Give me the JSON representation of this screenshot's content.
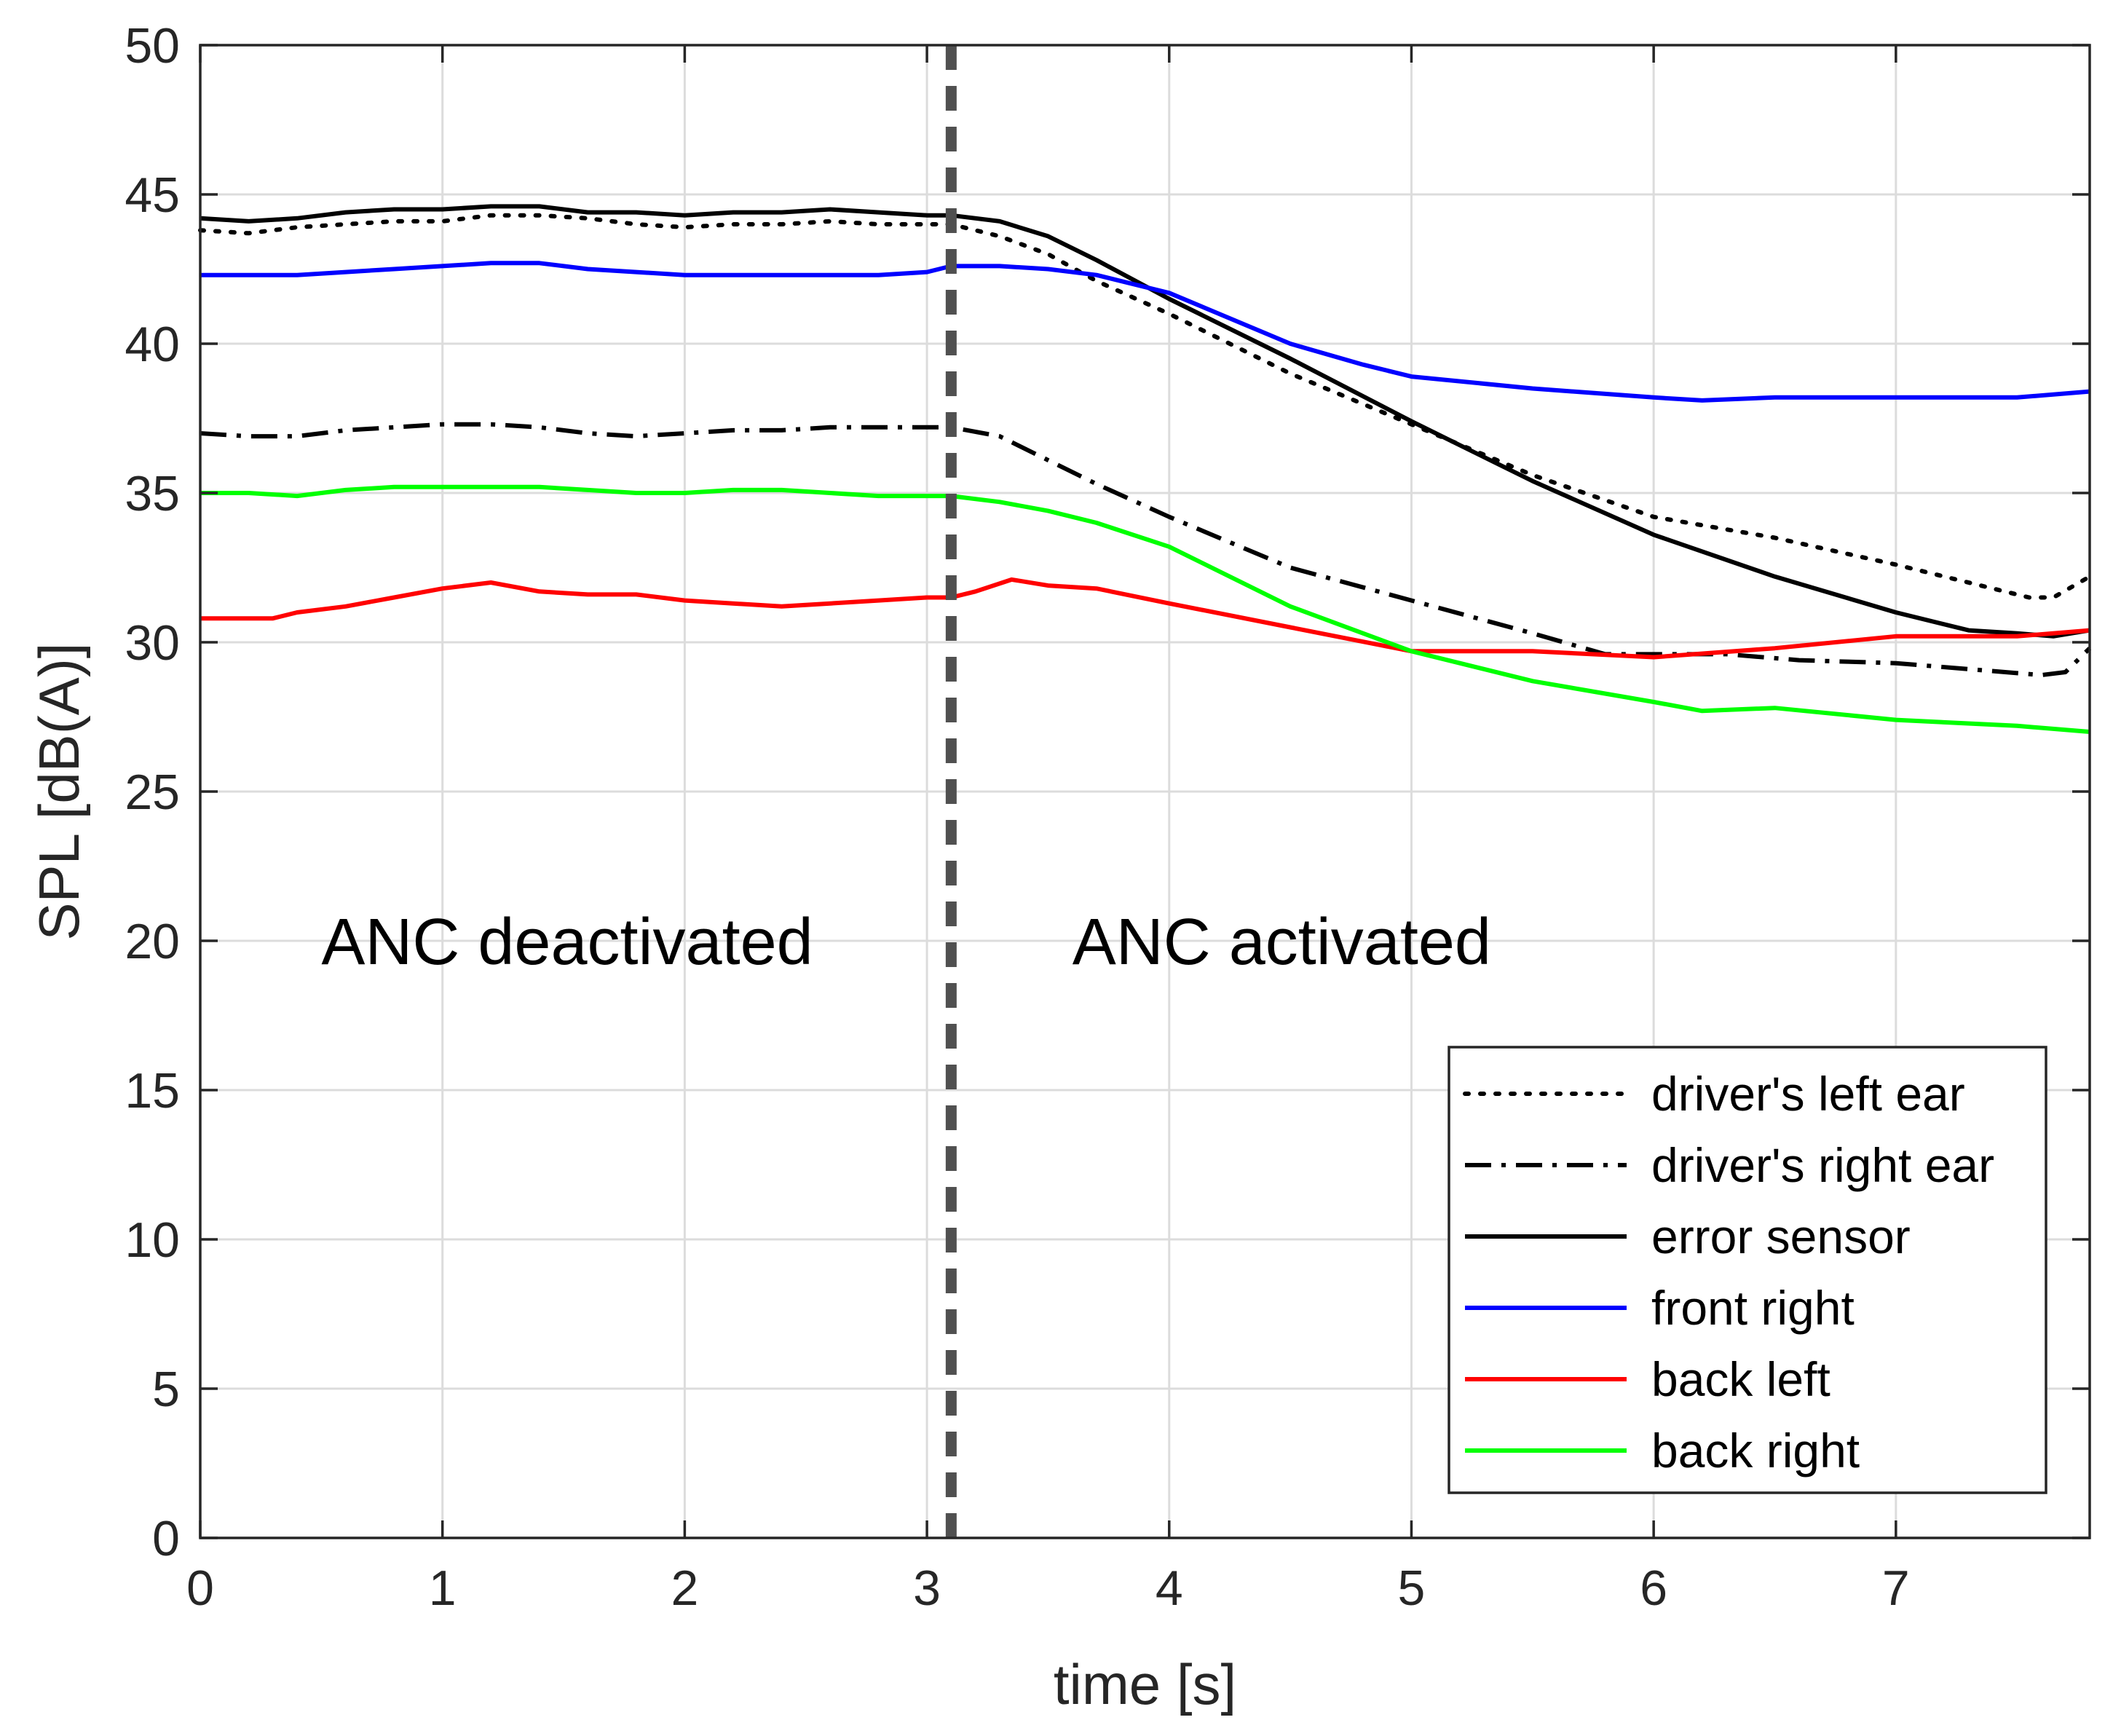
{
  "chart_data": {
    "type": "line",
    "title": "",
    "xlabel": "time [s]",
    "ylabel": "SPL [dB(A)]",
    "xlim": [
      0,
      7.8
    ],
    "ylim": [
      0,
      50
    ],
    "x_ticks": [
      0,
      1,
      2,
      3,
      4,
      5,
      6,
      7
    ],
    "y_ticks": [
      0,
      5,
      10,
      15,
      20,
      25,
      30,
      35,
      40,
      45,
      50
    ],
    "grid": true,
    "legend_position": "bottom-right",
    "vline": {
      "x": 3.1,
      "style": "dashed",
      "color": "#505050"
    },
    "annotations": [
      {
        "text": "ANC deactivated",
        "x": 0.5,
        "y": 20
      },
      {
        "text": "ANC activated",
        "x": 3.6,
        "y": 20
      }
    ],
    "series": [
      {
        "name": "driver's left ear",
        "color": "#000000",
        "style": "dotted",
        "x": [
          0,
          0.2,
          0.4,
          0.6,
          0.8,
          1.0,
          1.2,
          1.4,
          1.6,
          1.8,
          2.0,
          2.2,
          2.4,
          2.6,
          2.8,
          3.0,
          3.1,
          3.3,
          3.5,
          3.7,
          4.0,
          4.5,
          5.0,
          5.5,
          6.0,
          6.5,
          7.0,
          7.3,
          7.55,
          7.65,
          7.8
        ],
        "values": [
          43.8,
          43.7,
          43.9,
          44.0,
          44.1,
          44.1,
          44.3,
          44.3,
          44.2,
          44.0,
          43.9,
          44.0,
          44.0,
          44.1,
          44.0,
          44.0,
          44.0,
          43.6,
          43.0,
          42.1,
          41.0,
          39.0,
          37.3,
          35.6,
          34.2,
          33.5,
          32.6,
          32.0,
          31.5,
          31.5,
          32.2
        ]
      },
      {
        "name": "driver's right ear",
        "color": "#000000",
        "style": "dashdot",
        "x": [
          0,
          0.2,
          0.4,
          0.6,
          0.8,
          1.0,
          1.2,
          1.4,
          1.6,
          1.8,
          2.0,
          2.2,
          2.4,
          2.6,
          2.8,
          3.0,
          3.1,
          3.3,
          3.5,
          3.7,
          4.0,
          4.5,
          5.0,
          5.5,
          5.8,
          6.0,
          6.3,
          6.6,
          7.0,
          7.3,
          7.6,
          7.7,
          7.8
        ],
        "values": [
          37.0,
          36.9,
          36.9,
          37.1,
          37.2,
          37.3,
          37.3,
          37.2,
          37.0,
          36.9,
          37.0,
          37.1,
          37.1,
          37.2,
          37.2,
          37.2,
          37.2,
          36.9,
          36.1,
          35.3,
          34.2,
          32.5,
          31.4,
          30.3,
          29.6,
          29.6,
          29.6,
          29.4,
          29.3,
          29.1,
          28.9,
          29.0,
          29.8
        ]
      },
      {
        "name": "error sensor",
        "color": "#000000",
        "style": "solid",
        "x": [
          0,
          0.2,
          0.4,
          0.6,
          0.8,
          1.0,
          1.2,
          1.4,
          1.6,
          1.8,
          2.0,
          2.2,
          2.4,
          2.6,
          2.8,
          3.0,
          3.1,
          3.3,
          3.5,
          3.7,
          4.0,
          4.5,
          5.0,
          5.5,
          6.0,
          6.5,
          7.0,
          7.3,
          7.5,
          7.65,
          7.8
        ],
        "values": [
          44.2,
          44.1,
          44.2,
          44.4,
          44.5,
          44.5,
          44.6,
          44.6,
          44.4,
          44.4,
          44.3,
          44.4,
          44.4,
          44.5,
          44.4,
          44.3,
          44.3,
          44.1,
          43.6,
          42.8,
          41.5,
          39.5,
          37.4,
          35.4,
          33.6,
          32.2,
          31.0,
          30.4,
          30.3,
          30.2,
          30.4
        ]
      },
      {
        "name": "front right",
        "color": "#0000ff",
        "style": "solid",
        "x": [
          0,
          0.2,
          0.4,
          0.6,
          0.8,
          1.0,
          1.2,
          1.4,
          1.6,
          1.8,
          2.0,
          2.2,
          2.4,
          2.6,
          2.8,
          3.0,
          3.1,
          3.3,
          3.5,
          3.7,
          4.0,
          4.5,
          4.8,
          5.0,
          5.5,
          6.0,
          6.2,
          6.5,
          7.0,
          7.5,
          7.8
        ],
        "values": [
          42.3,
          42.3,
          42.3,
          42.4,
          42.5,
          42.6,
          42.7,
          42.7,
          42.5,
          42.4,
          42.3,
          42.3,
          42.3,
          42.3,
          42.3,
          42.4,
          42.6,
          42.6,
          42.5,
          42.3,
          41.7,
          40.0,
          39.3,
          38.9,
          38.5,
          38.2,
          38.1,
          38.2,
          38.2,
          38.2,
          38.4
        ]
      },
      {
        "name": "back left",
        "color": "#ff0000",
        "style": "solid",
        "x": [
          0,
          0.2,
          0.3,
          0.4,
          0.6,
          0.8,
          1.0,
          1.2,
          1.4,
          1.6,
          1.8,
          2.0,
          2.2,
          2.4,
          2.6,
          2.8,
          3.0,
          3.1,
          3.2,
          3.35,
          3.5,
          3.7,
          4.0,
          4.5,
          5.0,
          5.5,
          6.0,
          6.5,
          7.0,
          7.5,
          7.8
        ],
        "values": [
          30.8,
          30.8,
          30.8,
          31.0,
          31.2,
          31.5,
          31.8,
          32.0,
          31.7,
          31.6,
          31.6,
          31.4,
          31.3,
          31.2,
          31.3,
          31.4,
          31.5,
          31.5,
          31.7,
          32.1,
          31.9,
          31.8,
          31.3,
          30.5,
          29.7,
          29.7,
          29.5,
          29.8,
          30.2,
          30.2,
          30.4
        ]
      },
      {
        "name": "back right",
        "color": "#00ff00",
        "style": "solid",
        "x": [
          0,
          0.2,
          0.4,
          0.6,
          0.8,
          1.0,
          1.2,
          1.4,
          1.6,
          1.8,
          2.0,
          2.2,
          2.4,
          2.6,
          2.8,
          3.0,
          3.1,
          3.3,
          3.5,
          3.7,
          4.0,
          4.5,
          5.0,
          5.5,
          6.0,
          6.2,
          6.5,
          7.0,
          7.5,
          7.8
        ],
        "values": [
          35.0,
          35.0,
          34.9,
          35.1,
          35.2,
          35.2,
          35.2,
          35.2,
          35.1,
          35.0,
          35.0,
          35.1,
          35.1,
          35.0,
          34.9,
          34.9,
          34.9,
          34.7,
          34.4,
          34.0,
          33.2,
          31.2,
          29.7,
          28.7,
          28.0,
          27.7,
          27.8,
          27.4,
          27.2,
          27.0
        ]
      }
    ]
  }
}
